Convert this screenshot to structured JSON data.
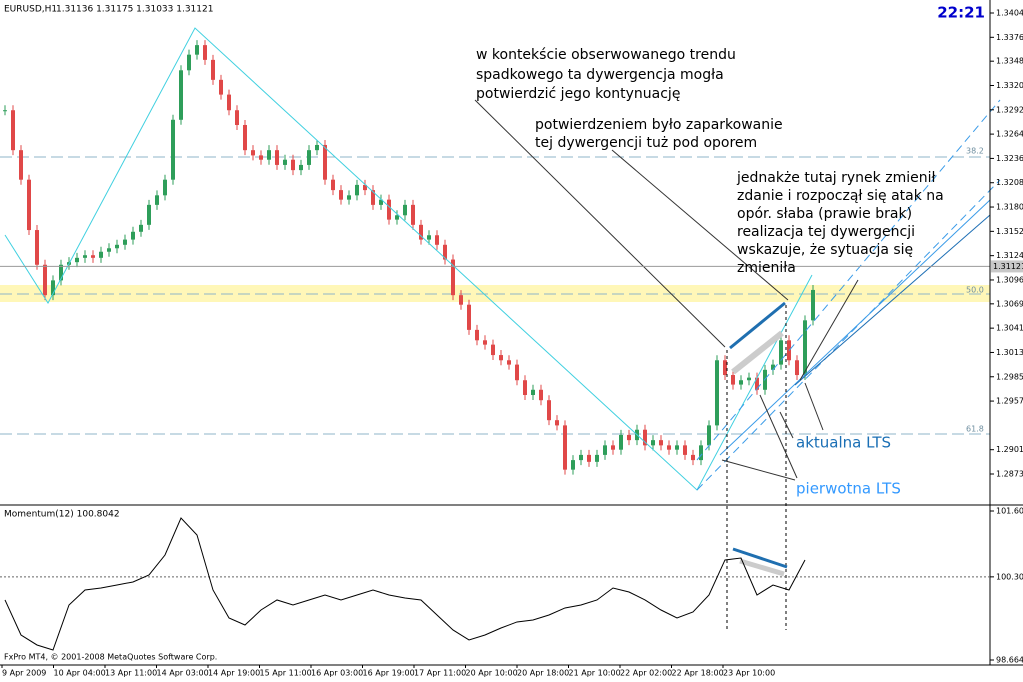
{
  "header": {
    "symbol": "EURUSD,H1",
    "quotes": "1.31136 1.31175 1.31033 1.31121",
    "clock": "22:21"
  },
  "price_axis": {
    "ticks": [
      {
        "value": 1.3404,
        "label": "1.34040"
      },
      {
        "value": 1.3376,
        "label": "1.33760"
      },
      {
        "value": 1.33485,
        "label": "1.33485"
      },
      {
        "value": 1.33205,
        "label": "1.33205"
      },
      {
        "value": 1.32925,
        "label": "1.32925"
      },
      {
        "value": 1.32645,
        "label": "1.32645"
      },
      {
        "value": 1.32365,
        "label": "1.32365"
      },
      {
        "value": 1.32085,
        "label": "1.32085"
      },
      {
        "value": 1.31805,
        "label": "1.31805"
      },
      {
        "value": 1.31525,
        "label": "1.31525"
      },
      {
        "value": 1.31245,
        "label": "1.31245"
      },
      {
        "value": 1.30965,
        "label": "1.30965"
      },
      {
        "value": 1.3069,
        "label": "1.30690"
      },
      {
        "value": 1.3041,
        "label": "1.30410"
      },
      {
        "value": 1.3013,
        "label": "1.30130"
      },
      {
        "value": 1.2985,
        "label": "1.29850"
      },
      {
        "value": 1.2957,
        "label": "1.29570"
      },
      {
        "value": 1.2901,
        "label": "1.29010"
      },
      {
        "value": 1.2873,
        "label": "1.28730"
      }
    ],
    "current": {
      "value": 1.31121,
      "label": "1.31121"
    }
  },
  "fibonacci": [
    "38.2",
    "50.0",
    "61.8"
  ],
  "candles": {
    "closes": [
      1.3292,
      1.3246,
      1.3212,
      1.3154,
      1.3114,
      1.3079,
      1.3096,
      1.3114,
      1.3117,
      1.3122,
      1.3125,
      1.3122,
      1.3129,
      1.3133,
      1.3137,
      1.3143,
      1.3152,
      1.316,
      1.3183,
      1.3194,
      1.3212,
      1.3281,
      1.3338,
      1.3356,
      1.3367,
      1.335,
      1.3327,
      1.331,
      1.3292,
      1.3275,
      1.3246,
      1.324,
      1.3235,
      1.3246,
      1.3229,
      1.3235,
      1.3223,
      1.3229,
      1.3246,
      1.3252,
      1.3212,
      1.32,
      1.3189,
      1.3194,
      1.3206,
      1.32,
      1.3183,
      1.3189,
      1.3166,
      1.3171,
      1.3183,
      1.316,
      1.3143,
      1.3148,
      1.3137,
      1.312,
      1.3079,
      1.3068,
      1.3039,
      1.3027,
      1.3022,
      1.301,
      1.3004,
      1.2999,
      1.2981,
      1.2964,
      1.297,
      1.2958,
      1.2935,
      1.2929,
      1.2878,
      1.2889,
      1.2895,
      1.2887,
      1.2895,
      1.2906,
      1.2901,
      1.2918,
      1.2912,
      1.2924,
      1.2906,
      1.2912,
      1.2906,
      1.2901,
      1.2906,
      1.2895,
      1.2889,
      1.2906,
      1.2929,
      1.3004,
      1.2987,
      1.2976,
      1.2981,
      1.2984,
      1.297,
      1.2993,
      1.2999,
      1.3027,
      1.3004,
      1.2987,
      1.305,
      1.3085
    ]
  },
  "momentum": {
    "label": "Momentum(12) 100.8042",
    "ticks": [
      {
        "value": 101.604,
        "label": "101.6040"
      },
      {
        "value": 100.3048,
        "label": "100.3048"
      },
      {
        "value": 98.6648,
        "label": "98.6648"
      }
    ],
    "values": [
      99.849,
      99.158,
      98.961,
      98.862,
      99.75,
      100.046,
      100.085,
      100.144,
      100.204,
      100.342,
      100.736,
      101.466,
      101.131,
      100.046,
      99.494,
      99.355,
      99.651,
      99.849,
      99.75,
      99.849,
      99.947,
      99.849,
      99.947,
      100.046,
      99.947,
      99.888,
      99.849,
      99.553,
      99.257,
      99.06,
      99.158,
      99.296,
      99.415,
      99.454,
      99.553,
      99.691,
      99.75,
      99.849,
      100.085,
      100.006,
      99.849,
      99.651,
      99.494,
      99.612,
      99.947,
      100.638,
      100.677,
      99.947,
      100.144,
      100.046,
      100.638
    ]
  },
  "time_axis": [
    "9 Apr 2009",
    "10 Apr 04:00",
    "13 Apr 11:00",
    "14 Apr 03:00",
    "14 Apr 19:00",
    "15 Apr 11:00",
    "16 Apr 03:00",
    "16 Apr 19:00",
    "17 Apr 11:00",
    "20 Apr 10:00",
    "20 Apr 18:00",
    "21 Apr 10:00",
    "22 Apr 02:00",
    "22 Apr 18:00",
    "23 Apr 10:00"
  ],
  "annotations": {
    "context": [
      "w kontekście obserwowanego trendu",
      "spadkowego ta dywergencja mogła",
      "potwierdzić jego kontynuację"
    ],
    "confirmation": [
      "potwierdzeniem było zaparkowanie",
      "tej dywergencji tuż pod oporem"
    ],
    "change": [
      "jednakże tutaj rynek zmienił",
      "zdanie i rozpoczął się atak na",
      "opór. słaba (prawie brak)",
      "realizacja tej dywergencji",
      "wskazuje, że sytuacja się",
      "zmieniła"
    ],
    "current_lts": "aktualna LTS",
    "original_lts": "pierwotna LTS"
  },
  "footer": "FxPro MT4, © 2001-2008 MetaQuotes Software Corp."
}
